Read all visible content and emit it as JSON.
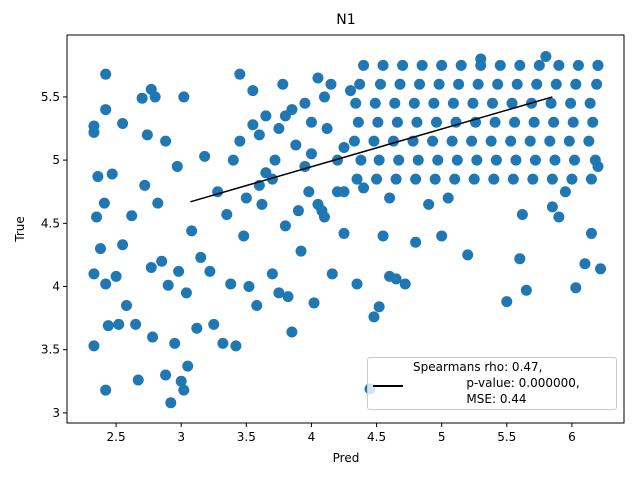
{
  "chart_data": {
    "type": "scatter",
    "title": "N1",
    "x_label": "Pred",
    "y_label": "True",
    "xlim": [
      2.123,
      6.4
    ],
    "ylim": [
      2.92,
      5.99
    ],
    "xticks": [
      2.5,
      3.0,
      3.5,
      4.0,
      4.5,
      5.0,
      5.5,
      6.0
    ],
    "yticks": [
      3.0,
      3.5,
      4.0,
      4.5,
      5.0,
      5.5
    ],
    "series": [
      {
        "kind": "points",
        "color": "#1f77b4",
        "x": [
          2.33,
          2.33,
          2.33,
          2.33,
          2.36,
          2.35,
          2.38,
          2.41,
          2.42,
          2.42,
          2.42,
          2.44,
          2.42,
          2.47,
          2.5,
          2.52,
          2.55,
          2.55,
          2.58,
          2.62,
          2.65,
          2.67,
          2.7,
          2.72,
          2.74,
          2.77,
          2.77,
          2.8,
          2.78,
          2.82,
          2.85,
          2.88,
          2.88,
          2.9,
          2.92,
          2.95,
          2.97,
          2.98,
          3.0,
          3.02,
          3.02,
          3.04,
          3.05,
          3.08,
          3.12,
          3.15,
          3.18,
          3.22,
          3.25,
          3.28,
          3.32,
          3.35,
          3.38,
          3.42,
          3.45,
          3.48,
          3.52,
          3.55,
          3.58,
          3.62,
          3.65,
          3.7,
          3.72,
          3.75,
          3.78,
          3.8,
          3.82,
          3.85,
          3.88,
          3.92,
          3.95,
          3.98,
          4.02,
          4.05,
          4.08,
          4.12,
          4.16,
          4.2,
          4.25,
          4.3,
          4.35,
          4.4,
          4.45,
          4.48,
          4.52,
          4.55,
          4.6,
          4.65,
          4.72,
          4.8,
          5.0,
          5.2,
          5.5,
          5.6,
          5.65,
          5.9,
          6.03,
          6.1,
          6.22,
          6.15,
          5.85,
          5.62,
          3.4,
          3.5,
          3.6,
          3.7,
          3.8,
          3.9,
          4.0,
          4.1,
          4.2,
          3.45,
          3.65,
          3.85,
          4.05,
          4.25,
          3.55,
          3.75,
          3.95,
          4.15,
          3.6,
          4.0,
          4.35,
          4.5,
          4.65,
          4.8,
          4.95,
          5.1,
          5.25,
          5.4,
          5.55,
          5.7,
          5.85,
          6.0,
          6.15,
          4.38,
          4.52,
          4.67,
          4.82,
          4.97,
          5.12,
          5.27,
          5.42,
          5.57,
          5.72,
          5.87,
          6.02,
          6.18,
          4.33,
          4.48,
          4.63,
          4.78,
          4.93,
          5.08,
          5.23,
          5.38,
          5.53,
          5.68,
          5.83,
          5.98,
          6.13,
          4.36,
          4.51,
          4.66,
          4.81,
          4.96,
          5.11,
          5.26,
          5.41,
          5.56,
          5.71,
          5.86,
          6.01,
          6.16,
          4.34,
          4.49,
          4.64,
          4.79,
          4.94,
          5.09,
          5.24,
          5.39,
          5.54,
          5.69,
          5.84,
          5.99,
          6.14,
          4.37,
          4.53,
          4.68,
          4.83,
          4.98,
          5.13,
          5.28,
          5.43,
          5.58,
          5.73,
          5.88,
          6.03,
          6.19,
          4.4,
          4.55,
          4.7,
          4.85,
          5.0,
          5.15,
          5.3,
          5.45,
          5.6,
          5.75,
          5.9,
          6.05,
          6.2,
          6.2,
          6.2,
          5.3,
          5.8,
          4.25,
          4.1,
          4.6,
          4.9,
          5.05,
          5.95
        ],
        "values": [
          5.27,
          5.22,
          4.1,
          3.53,
          4.87,
          4.55,
          4.3,
          4.66,
          5.68,
          5.4,
          4.02,
          3.69,
          3.18,
          4.89,
          4.08,
          3.7,
          5.29,
          4.33,
          3.85,
          4.56,
          3.7,
          3.26,
          5.49,
          4.8,
          5.2,
          5.56,
          4.15,
          5.5,
          3.6,
          4.66,
          4.2,
          3.3,
          5.15,
          4.01,
          3.08,
          3.55,
          4.95,
          4.12,
          3.25,
          3.18,
          5.5,
          3.95,
          3.37,
          4.44,
          3.67,
          4.23,
          5.03,
          4.12,
          3.7,
          4.75,
          3.55,
          4.57,
          4.02,
          3.53,
          5.68,
          4.4,
          4.0,
          5.28,
          3.85,
          4.65,
          5.35,
          4.1,
          5.0,
          3.95,
          5.6,
          4.48,
          3.92,
          3.64,
          5.12,
          4.28,
          5.45,
          4.75,
          3.87,
          5.65,
          4.6,
          5.25,
          4.1,
          5.0,
          4.42,
          5.55,
          4.02,
          4.78,
          3.19,
          3.76,
          3.84,
          4.4,
          4.08,
          4.06,
          4.02,
          4.35,
          4.4,
          4.25,
          3.88,
          4.22,
          3.97,
          4.55,
          3.99,
          4.18,
          4.14,
          4.42,
          4.63,
          4.57,
          5.0,
          4.7,
          5.2,
          4.85,
          5.35,
          4.6,
          5.05,
          5.5,
          4.75,
          5.15,
          4.9,
          5.4,
          4.65,
          5.1,
          5.55,
          5.25,
          4.95,
          5.6,
          4.8,
          5.3,
          4.85,
          4.85,
          4.85,
          4.85,
          4.85,
          4.85,
          4.85,
          4.85,
          4.85,
          4.85,
          4.85,
          4.85,
          4.85,
          5.0,
          5.0,
          5.0,
          5.0,
          5.0,
          5.0,
          5.0,
          5.0,
          5.0,
          5.0,
          5.0,
          5.0,
          5.0,
          5.15,
          5.15,
          5.15,
          5.15,
          5.15,
          5.15,
          5.15,
          5.15,
          5.15,
          5.15,
          5.15,
          5.15,
          5.15,
          5.3,
          5.3,
          5.3,
          5.3,
          5.3,
          5.3,
          5.3,
          5.3,
          5.3,
          5.3,
          5.3,
          5.3,
          5.3,
          5.45,
          5.45,
          5.45,
          5.45,
          5.45,
          5.45,
          5.45,
          5.45,
          5.45,
          5.45,
          5.45,
          5.45,
          5.45,
          5.6,
          5.6,
          5.6,
          5.6,
          5.6,
          5.6,
          5.6,
          5.6,
          5.6,
          5.6,
          5.6,
          5.6,
          5.6,
          5.75,
          5.75,
          5.75,
          5.75,
          5.75,
          5.75,
          5.75,
          5.75,
          5.75,
          5.75,
          5.75,
          5.75,
          5.75,
          5.75,
          4.95,
          5.8,
          5.82,
          4.75,
          4.55,
          4.7,
          4.65,
          4.7,
          4.75
        ]
      },
      {
        "kind": "line",
        "name": "Spearmans rho: 0.47,\n              p-value: 0.000000,\n              MSE: 0.44",
        "color": "#000000",
        "x": [
          3.07,
          5.85
        ],
        "values": [
          4.67,
          5.5
        ]
      }
    ]
  }
}
